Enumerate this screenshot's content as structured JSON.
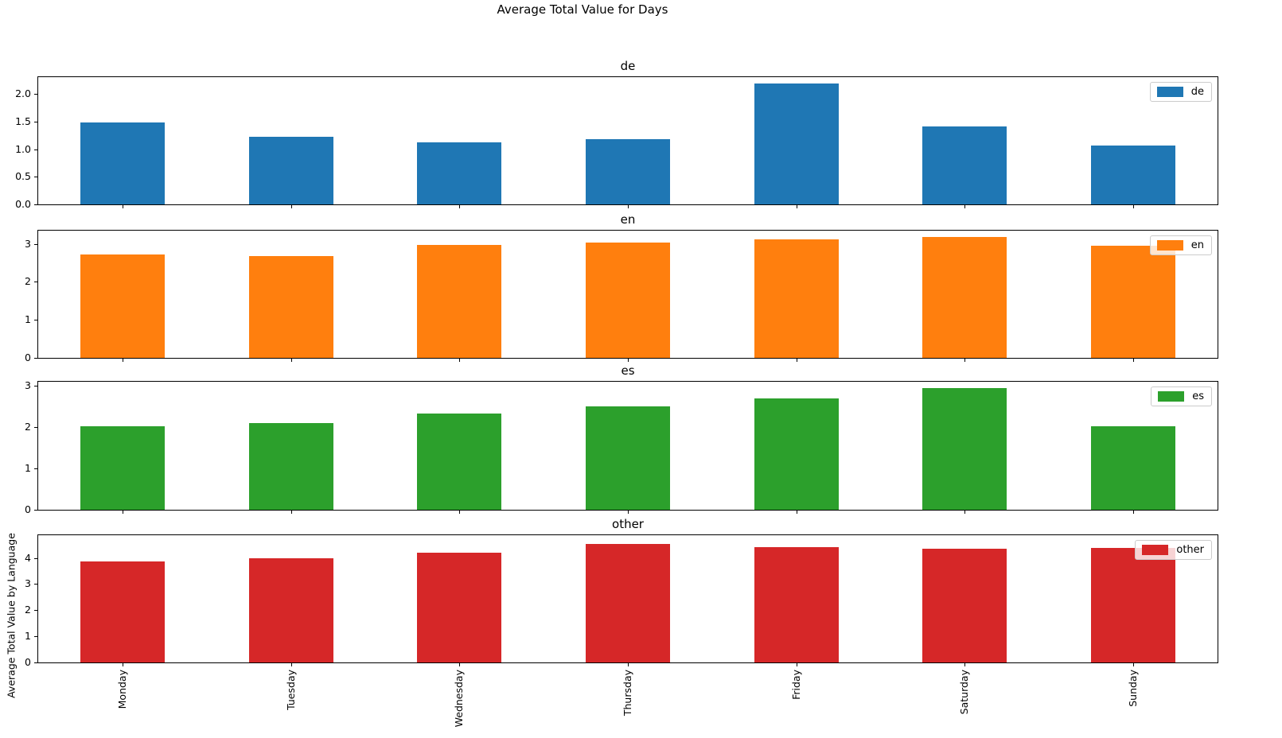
{
  "figure": {
    "title": "Average Total Value for Days",
    "background": "#ffffff"
  },
  "chart_data": {
    "type": "bar",
    "title": "Average Total Value for Days",
    "ylabel": "Average Total Value by Language",
    "xlabel": "",
    "grid": false,
    "legend_position": "upper right",
    "xtick_rotation_deg": 90,
    "categories": [
      "Monday",
      "Tuesday",
      "Wednesday",
      "Thursday",
      "Friday",
      "Saturday",
      "Sunday"
    ],
    "subplots": [
      {
        "title": "de",
        "legend_label": "de",
        "color": "#1f77b4",
        "values": [
          1.49,
          1.22,
          1.13,
          1.18,
          2.2,
          1.41,
          1.07
        ],
        "ylim": [
          0,
          2.31
        ],
        "yticks": [
          0,
          0.5,
          1,
          1.5,
          2
        ],
        "ytick_labels": [
          "0.0",
          "0.5",
          "1.0",
          "1.5",
          "2.0"
        ]
      },
      {
        "title": "en",
        "legend_label": "en",
        "color": "#ff7f0e",
        "values": [
          2.73,
          2.67,
          2.98,
          3.03,
          3.11,
          3.19,
          2.96
        ],
        "ylim": [
          0,
          3.35
        ],
        "yticks": [
          0,
          1,
          2,
          3
        ],
        "ytick_labels": [
          "0",
          "1",
          "2",
          "3"
        ]
      },
      {
        "title": "es",
        "legend_label": "es",
        "color": "#2ca02c",
        "values": [
          2.03,
          2.09,
          2.33,
          2.51,
          2.7,
          2.95,
          2.02
        ],
        "ylim": [
          0,
          3.1
        ],
        "yticks": [
          0,
          1,
          2,
          3
        ],
        "ytick_labels": [
          "0",
          "1",
          "2",
          "3"
        ]
      },
      {
        "title": "other",
        "legend_label": "other",
        "color": "#d62728",
        "values": [
          3.88,
          3.99,
          4.21,
          4.55,
          4.42,
          4.36,
          4.38
        ],
        "ylim": [
          0,
          4.87
        ],
        "yticks": [
          0,
          1,
          2,
          3,
          4
        ],
        "ytick_labels": [
          "0",
          "1",
          "2",
          "3",
          "4"
        ]
      }
    ]
  }
}
